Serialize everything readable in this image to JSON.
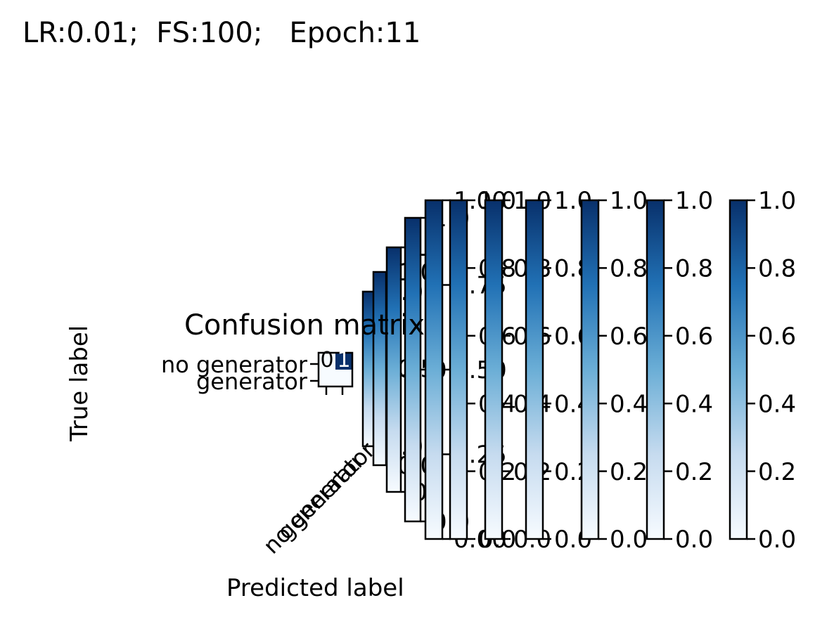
{
  "suptitle": "LR:0.01;  FS:100;   Epoch:11",
  "chart_data": {
    "type": "heatmap",
    "title": "Confusion matrix",
    "xlabel": "Predicted label",
    "ylabel": "True label",
    "row_labels": [
      "no generator",
      "generator"
    ],
    "col_labels": [
      "no generator",
      "generator"
    ],
    "colormap": "Blues",
    "matrix": [
      [
        0,
        1
      ],
      [
        0,
        0
      ]
    ],
    "cell_text": [
      "0",
      "1"
    ],
    "colorbars": [
      {
        "ticks": [
          "0.0",
          "0.2",
          "0.4",
          "0.6",
          "0.8",
          "1.0"
        ],
        "range": [
          0,
          1
        ]
      },
      {
        "ticks": [
          "0.0",
          "0.2",
          "0.4",
          "0.6",
          "0.8",
          "1.0"
        ],
        "range": [
          0,
          1
        ]
      },
      {
        "ticks": [
          "0.0",
          "0.2",
          "0.4",
          "0.6",
          "0.8",
          "1.0"
        ],
        "range": [
          0,
          1
        ]
      },
      {
        "ticks": [
          "0.0",
          "0.2",
          "0.4",
          "0.6",
          "0.8",
          "1.0"
        ],
        "range": [
          0,
          1
        ]
      },
      {
        "ticks": [
          "0.0",
          "0.2",
          "0.4",
          "0.6",
          "0.8",
          "1.0"
        ],
        "range": [
          0,
          1
        ]
      },
      {
        "ticks": [
          "0.0",
          "0.2",
          "0.4",
          "0.6",
          "0.8",
          "1.0"
        ],
        "range": [
          0,
          1
        ]
      },
      {
        "ticks": [
          "0.00",
          "0.25",
          "0.50",
          "0.75",
          "1.00"
        ],
        "range": [
          0,
          1
        ]
      },
      {
        "ticks": [
          "0.0",
          "0.5",
          "1.0"
        ],
        "range": [
          0,
          1
        ]
      },
      {
        "ticks": [
          "0",
          "1"
        ],
        "range": [
          0,
          1
        ]
      },
      {
        "ticks": [
          "0.0",
          "0.5",
          "1.0"
        ],
        "range": [
          0,
          1
        ]
      },
      {
        "ticks": [
          "0.0",
          "0.5",
          "1.0"
        ],
        "range": [
          0,
          1
        ]
      }
    ],
    "colors": {
      "low": "#f7fbff",
      "mid": "#6baed6",
      "high": "#08306b",
      "cell_text_dark": "#ffffff",
      "cell_text_light": "#000000"
    }
  }
}
